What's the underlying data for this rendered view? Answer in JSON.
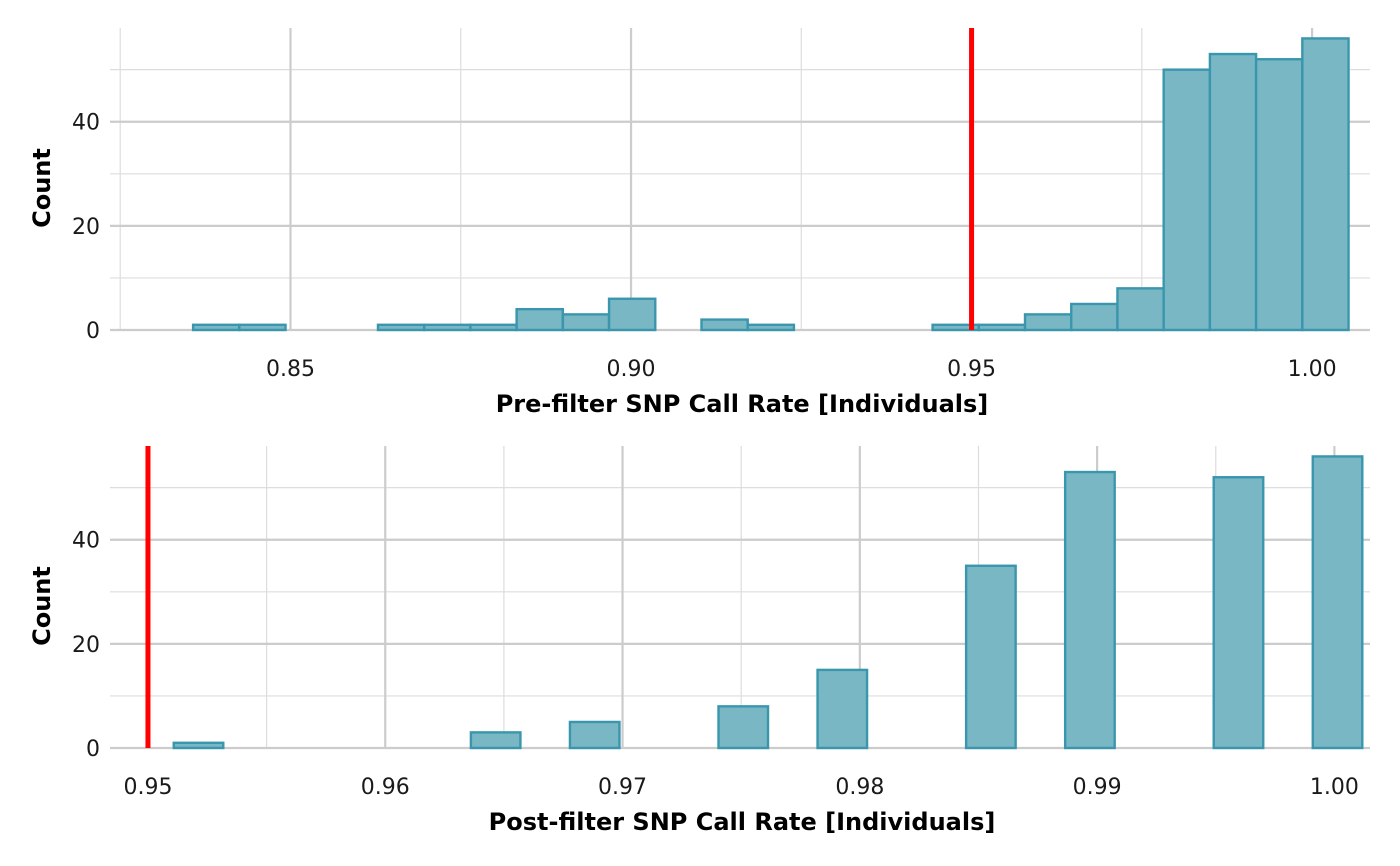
{
  "colors": {
    "bar_fill": "#79b7c5",
    "bar_stroke": "#3a96ad",
    "threshold": "#ff0000",
    "grid_major": "#cccccc",
    "grid_minor": "#dddddd"
  },
  "chart_data": [
    {
      "type": "bar",
      "title": "",
      "xlabel": "Pre-filter SNP Call Rate [Individuals]",
      "ylabel": "Count",
      "xlim": [
        0.8235,
        1.0085
      ],
      "ylim": [
        0,
        58
      ],
      "xticks": [
        0.85,
        0.9,
        0.95,
        1.0
      ],
      "xtick_labels": [
        "0.85",
        "0.90",
        "0.95",
        "1.00"
      ],
      "yticks": [
        0,
        20,
        40
      ],
      "ytick_labels": [
        "0",
        "20",
        "40"
      ],
      "bin_width": 0.006786,
      "bins_x_start": 0.8357,
      "values": [
        1,
        1,
        0,
        0,
        1,
        1,
        1,
        4,
        3,
        6,
        0,
        2,
        1,
        0,
        0,
        0,
        1,
        1,
        3,
        5,
        8,
        50,
        53,
        52,
        56
      ],
      "threshold": 0.95,
      "grid": true
    },
    {
      "type": "bar",
      "title": "",
      "xlabel": "Post-filter SNP Call Rate [Individuals]",
      "ylabel": "Count",
      "xlim": [
        0.9484,
        1.0015
      ],
      "ylim": [
        0,
        58
      ],
      "xticks": [
        0.95,
        0.96,
        0.97,
        0.98,
        0.99,
        1.0
      ],
      "xtick_labels": [
        "0.95",
        "0.96",
        "0.97",
        "0.98",
        "0.99",
        "1.00"
      ],
      "yticks": [
        0,
        20,
        40
      ],
      "ytick_labels": [
        "0",
        "20",
        "40"
      ],
      "bin_width": 0.002087,
      "bins_x_start": 0.949,
      "values": [
        0,
        1,
        0,
        0,
        0,
        0,
        0,
        3,
        0,
        5,
        0,
        0,
        8,
        0,
        15,
        0,
        0,
        35,
        0,
        53,
        0,
        0,
        52,
        0,
        56
      ],
      "threshold": 0.95,
      "grid": true
    }
  ]
}
